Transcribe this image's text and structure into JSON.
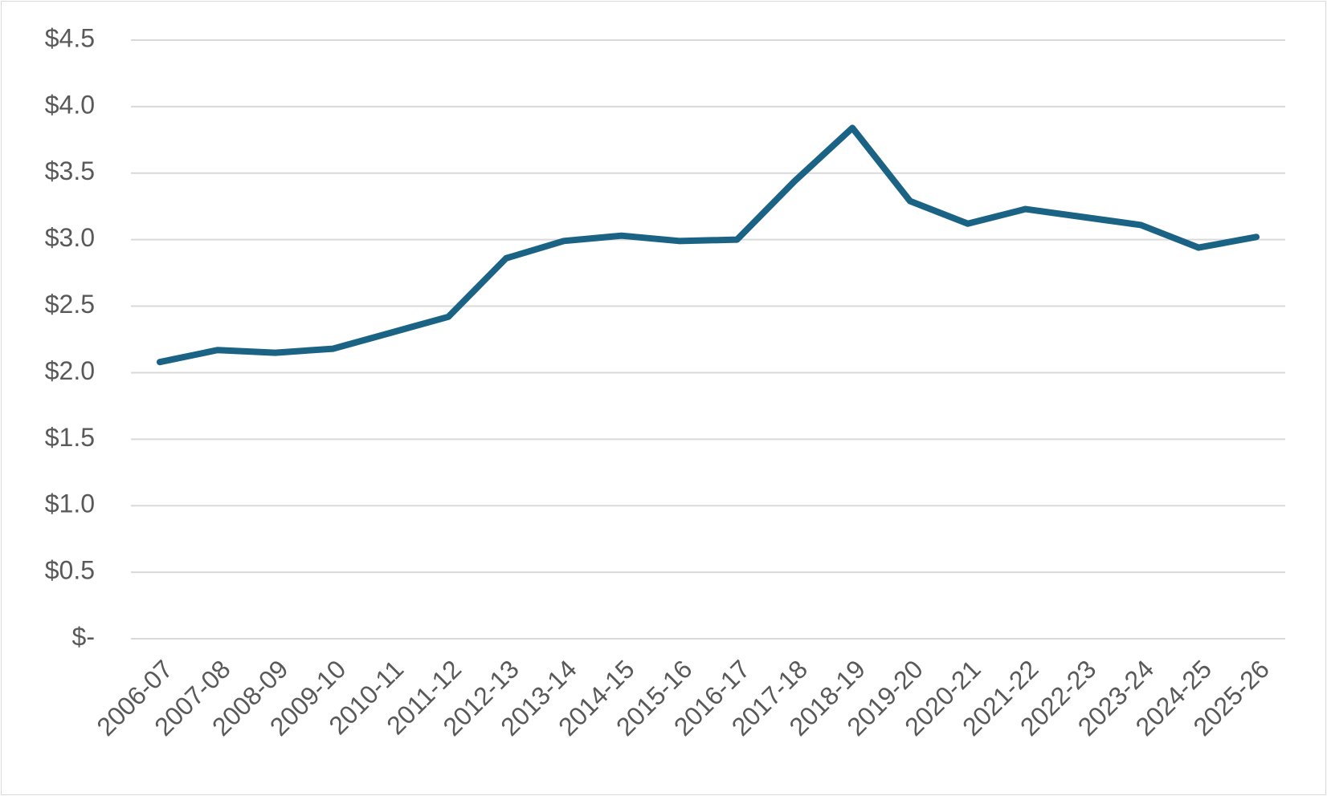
{
  "chart_data": {
    "type": "line",
    "title": "",
    "xlabel": "",
    "ylabel": "",
    "categories": [
      "2006-07",
      "2007-08",
      "2008-09",
      "2009-10",
      "2010-11",
      "2011-12",
      "2012-13",
      "2013-14",
      "2014-15",
      "2015-16",
      "2016-17",
      "2017-18",
      "2018-19",
      "2019-20",
      "2020-21",
      "2021-22",
      "2022-23",
      "2023-24",
      "2024-25",
      "2025-26"
    ],
    "series": [
      {
        "values": [
          2.08,
          2.17,
          2.15,
          2.18,
          2.3,
          2.42,
          2.86,
          2.99,
          3.03,
          2.99,
          3.0,
          3.44,
          3.84,
          3.29,
          3.12,
          3.23,
          3.17,
          3.11,
          2.94,
          3.02
        ],
        "color": "#1a6384"
      }
    ],
    "ylim": [
      0,
      4.5
    ],
    "yticks": [
      0,
      0.5,
      1.0,
      1.5,
      2.0,
      2.5,
      3.0,
      3.5,
      4.0,
      4.5
    ],
    "ytick_labels": [
      "$-",
      "$0.5",
      "$1.0",
      "$1.5",
      "$2.0",
      "$2.5",
      "$3.0",
      "$3.5",
      "$4.0",
      "$4.5"
    ],
    "grid": true,
    "gridline_color": "#d9d9d9",
    "legend": "none",
    "tick_label_color": "#595959"
  }
}
